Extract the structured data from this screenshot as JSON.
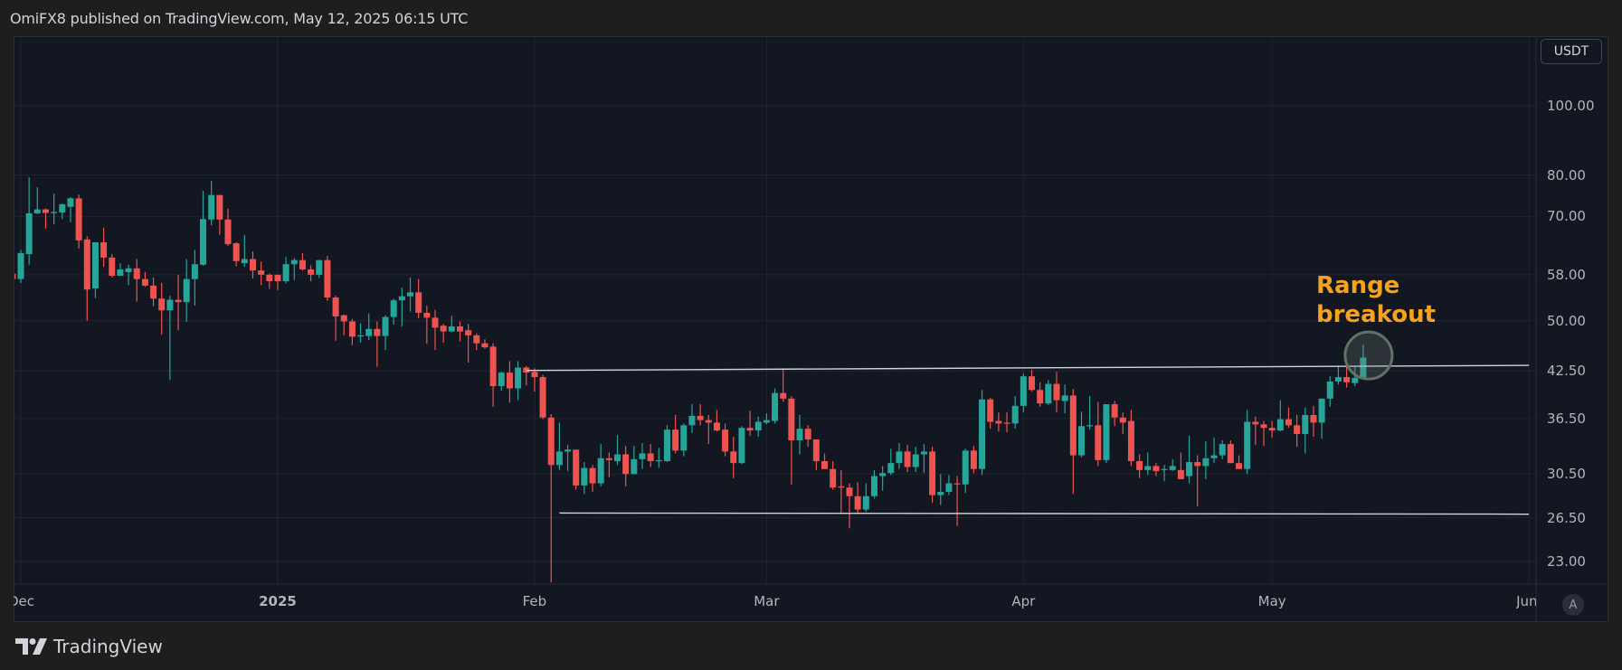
{
  "header": {
    "text": "OmiFX8 published on TradingView.com, May 12, 2025 06:15 UTC"
  },
  "footer": {
    "brand": "TradingView",
    "logo_icon": "tradingview-logo-icon"
  },
  "price_axis": {
    "currency_button": "USDT",
    "auto_scale_button": "A"
  },
  "annotation": {
    "line1": "Range",
    "line2": "breakout",
    "color": "#f7a21b"
  },
  "chart_data": {
    "type": "candlestick",
    "title": "",
    "y_scale": "log",
    "ylim": [
      21,
      118
    ],
    "grid": true,
    "last_candle_date": "2025-05-12",
    "colors": {
      "up": "#26a69a",
      "down": "#ef5350",
      "background": "#131722",
      "grid": "#2a2e39"
    },
    "y_ticks": [
      "100.00",
      "80.00",
      "70.00",
      "58.00",
      "50.00",
      "42.50",
      "36.50",
      "30.50",
      "26.50",
      "23.00"
    ],
    "x_ticks": [
      {
        "label": "Dec",
        "date": "2024-12-01",
        "type": "month"
      },
      {
        "label": "2025",
        "date": "2025-01-01",
        "type": "year"
      },
      {
        "label": "Feb",
        "date": "2025-02-01",
        "type": "month"
      },
      {
        "label": "Mar",
        "date": "2025-03-01",
        "type": "month"
      },
      {
        "label": "Apr",
        "date": "2025-04-01",
        "type": "month"
      },
      {
        "label": "May",
        "date": "2025-05-01",
        "type": "month"
      },
      {
        "label": "Jun",
        "date": "2025-06-01",
        "type": "month"
      }
    ],
    "candles_ohlc": [
      [
        55.5,
        58.5,
        55.3,
        58.2
      ],
      [
        58.2,
        62.2,
        56.5,
        57.2
      ],
      [
        57.2,
        62.8,
        56.5,
        62.2
      ],
      [
        62,
        79.4,
        59.9,
        70.7
      ],
      [
        70.7,
        76.9,
        70.5,
        71.6
      ],
      [
        71.6,
        71.8,
        67.3,
        70.8
      ],
      [
        70.8,
        75.3,
        68.2,
        71.0
      ],
      [
        70.9,
        73.0,
        69.4,
        72.8
      ],
      [
        72.2,
        74.5,
        68.7,
        74.2
      ],
      [
        74.2,
        75.1,
        63.1,
        64.8
      ],
      [
        65,
        65.7,
        50,
        55.3
      ],
      [
        55.5,
        64.4,
        53.8,
        64.4
      ],
      [
        64.4,
        67.5,
        59.5,
        61.3
      ],
      [
        61.3,
        62,
        57.5,
        57.8
      ],
      [
        57.8,
        60.2,
        57.8,
        59.0
      ],
      [
        58.5,
        59.9,
        56.1,
        59.2
      ],
      [
        59.2,
        61,
        53.2,
        57.2
      ],
      [
        57.2,
        58.5,
        55.8,
        56.0
      ],
      [
        56,
        57.5,
        52.4,
        53.7
      ],
      [
        53.7,
        56.5,
        47.8,
        51.7
      ],
      [
        51.7,
        54.2,
        41.3,
        53.5
      ],
      [
        53.5,
        58,
        48.5,
        53.1
      ],
      [
        53.1,
        61,
        49.8,
        57.2
      ],
      [
        57.2,
        62.8,
        52.5,
        60
      ],
      [
        59.9,
        76,
        59.7,
        69.4
      ],
      [
        69.3,
        78.5,
        68,
        75.0
      ],
      [
        75,
        75,
        66,
        69.3
      ],
      [
        69.3,
        71.8,
        63.6,
        64.0
      ],
      [
        64.2,
        64.4,
        59.6,
        60.6
      ],
      [
        60.2,
        65.9,
        59.5,
        61
      ],
      [
        61,
        62.5,
        57.3,
        58.8
      ],
      [
        58.8,
        60.5,
        56.1,
        58
      ],
      [
        58,
        58.2,
        55.4,
        56.8
      ],
      [
        58.0,
        58.0,
        55.2,
        56.8
      ],
      [
        56.8,
        61.4,
        56.4,
        60
      ],
      [
        60,
        61.2,
        57,
        60.8
      ],
      [
        60.8,
        62.2,
        58.8,
        59
      ],
      [
        59,
        59.8,
        56.8,
        58
      ],
      [
        58,
        60.8,
        57.4,
        60.8
      ],
      [
        60.8,
        61.6,
        53.3,
        53.9
      ],
      [
        53.9,
        54.2,
        46.9,
        50.7
      ],
      [
        50.9,
        51,
        47.7,
        49.9
      ],
      [
        49.9,
        50.3,
        46.2,
        47.5
      ],
      [
        47.6,
        49.6,
        46.6,
        47.7
      ],
      [
        47.6,
        51.2,
        47,
        48.7
      ],
      [
        48.7,
        49.9,
        43.1,
        47.6
      ],
      [
        47.6,
        50.9,
        45.5,
        50.6
      ],
      [
        50.6,
        53.7,
        49.4,
        53.4
      ],
      [
        53.4,
        55.6,
        49.1,
        54.1
      ],
      [
        54.1,
        57.5,
        51.5,
        54.8
      ],
      [
        54.8,
        57.2,
        50.4,
        51.3
      ],
      [
        51.3,
        52.5,
        46.4,
        50.5
      ],
      [
        50.5,
        51.8,
        45.5,
        48.9
      ],
      [
        49.2,
        49.5,
        46.6,
        48.3
      ],
      [
        48.3,
        50.8,
        48.2,
        49.1
      ],
      [
        49.1,
        49.9,
        46.8,
        48.3
      ],
      [
        48.5,
        49.5,
        43.7,
        47.7
      ],
      [
        47.7,
        48,
        45.5,
        46.5
      ],
      [
        46.5,
        47.1,
        45.7,
        45.9
      ],
      [
        46,
        46.5,
        37.9,
        40.5
      ],
      [
        40.5,
        42.4,
        39.9,
        42.3
      ],
      [
        42.3,
        43.9,
        38.4,
        40.2
      ],
      [
        40.2,
        43.9,
        38.7,
        43.0
      ],
      [
        43,
        43.2,
        40.6,
        42.3
      ],
      [
        42.4,
        42.9,
        39.8,
        41.7
      ],
      [
        41.7,
        42,
        36.4,
        36.6
      ],
      [
        36.6,
        37,
        21.5,
        31.4
      ],
      [
        31.4,
        36,
        30.9,
        32.8
      ],
      [
        32.8,
        33.5,
        30.8,
        33.0
      ],
      [
        33,
        33,
        29,
        29.4
      ],
      [
        29.4,
        31.7,
        28.6,
        31.1
      ],
      [
        31.1,
        31.4,
        28.8,
        29.6
      ],
      [
        29.6,
        33.6,
        29.3,
        32.1
      ],
      [
        32.1,
        32.7,
        30.2,
        31.9
      ],
      [
        31.8,
        34.6,
        31.4,
        32.5
      ],
      [
        32.5,
        33.4,
        29.3,
        30.5
      ],
      [
        30.5,
        33.4,
        30.5,
        32.0
      ],
      [
        32,
        33.7,
        31,
        32.6
      ],
      [
        32.6,
        33.6,
        31.2,
        31.8
      ],
      [
        31.8,
        33.2,
        31.1,
        31.9
      ],
      [
        31.8,
        35.7,
        31.7,
        35.2
      ],
      [
        35.2,
        36.9,
        32.6,
        32.9
      ],
      [
        32.9,
        35.9,
        32.3,
        35.7
      ],
      [
        35.7,
        38.2,
        34.8,
        36.8
      ],
      [
        36.8,
        38.2,
        35.7,
        36.3
      ],
      [
        36.3,
        36.9,
        33.6,
        36
      ],
      [
        36,
        37.5,
        35,
        35.1
      ],
      [
        35.2,
        35.9,
        32.3,
        32.8
      ],
      [
        32.8,
        34.4,
        30.1,
        31.6
      ],
      [
        31.6,
        35.6,
        31.5,
        35.4
      ],
      [
        35.4,
        37.4,
        34.5,
        35.1
      ],
      [
        35.1,
        36.7,
        34.4,
        36.1
      ],
      [
        36,
        37.1,
        35.8,
        36.3
      ],
      [
        36.2,
        40.2,
        35.9,
        39.6
      ],
      [
        39.6,
        42.8,
        38.5,
        38.9
      ],
      [
        38.9,
        39.2,
        29.5,
        34
      ],
      [
        34,
        36.9,
        32.5,
        35.3
      ],
      [
        35.3,
        35.7,
        33.3,
        34.1
      ],
      [
        34.1,
        34.1,
        30.9,
        31.8
      ],
      [
        31.8,
        32.6,
        31,
        31
      ],
      [
        31,
        31.8,
        29,
        29.2
      ],
      [
        29.3,
        30.9,
        26.8,
        29.2
      ],
      [
        29.2,
        29.6,
        25.6,
        28.4
      ],
      [
        28.4,
        29.7,
        26.8,
        27.2
      ],
      [
        27.2,
        29.6,
        27,
        28.4
      ],
      [
        28.4,
        30.9,
        28.2,
        30.3
      ],
      [
        30.3,
        31.3,
        28.9,
        30.6
      ],
      [
        30.6,
        33.1,
        30.4,
        31.6
      ],
      [
        31.6,
        33.7,
        31,
        32.8
      ],
      [
        32.8,
        33.5,
        30.7,
        31.2
      ],
      [
        31.2,
        33.3,
        30.7,
        32.5
      ],
      [
        32.5,
        33.6,
        30.6,
        32.8
      ],
      [
        32.8,
        33.3,
        27.8,
        28.5
      ],
      [
        28.5,
        30.5,
        27.6,
        28.8
      ],
      [
        28.8,
        30.4,
        28.5,
        29.6
      ],
      [
        29.6,
        30.3,
        25.8,
        29.5
      ],
      [
        29.5,
        33.1,
        28.7,
        32.9
      ],
      [
        32.9,
        33.4,
        30.6,
        31.0
      ],
      [
        31,
        40,
        30.4,
        38.8
      ],
      [
        38.8,
        39,
        35.3,
        36.1
      ],
      [
        36.2,
        37.2,
        35,
        35.9
      ],
      [
        36,
        37.2,
        34.9,
        35.9
      ],
      [
        35.9,
        39.2,
        35.3,
        38.0
      ],
      [
        38,
        42.2,
        37.2,
        41.8
      ],
      [
        41.8,
        42.7,
        39.8,
        40
      ],
      [
        40,
        41,
        37.9,
        38.3
      ],
      [
        38.3,
        41.3,
        38.1,
        40.8
      ],
      [
        40.8,
        42.4,
        37.2,
        38.7
      ],
      [
        38.6,
        40.7,
        37.1,
        39.3
      ],
      [
        39.3,
        40.1,
        28.6,
        32.4
      ],
      [
        32.4,
        37.3,
        32.2,
        35.6
      ],
      [
        35.6,
        39.2,
        35.2,
        35.7
      ],
      [
        35.7,
        38.5,
        31.3,
        31.9
      ],
      [
        31.9,
        38.2,
        31.6,
        38.2
      ],
      [
        38.2,
        38.6,
        35.6,
        36.6
      ],
      [
        36.6,
        37.2,
        34.7,
        36
      ],
      [
        36.2,
        37.5,
        31.3,
        31.8
      ],
      [
        31.8,
        32.5,
        30.1,
        30.9
      ],
      [
        30.9,
        32.7,
        30.4,
        31.3
      ],
      [
        31.3,
        31.6,
        30.3,
        30.8
      ],
      [
        30.9,
        31.4,
        29.8,
        31.0
      ],
      [
        30.9,
        32,
        30.8,
        31.3
      ],
      [
        30.9,
        32.7,
        30.4,
        30.0
      ],
      [
        30.3,
        34.5,
        29.6,
        31.7
      ],
      [
        31.7,
        32.4,
        27.5,
        31.3
      ],
      [
        31.3,
        33.9,
        30,
        32.1
      ],
      [
        32.1,
        34.3,
        31.6,
        32.4
      ],
      [
        32.4,
        34,
        32,
        33.6
      ],
      [
        33.6,
        34,
        31.6,
        31.6
      ],
      [
        31.6,
        32.4,
        31,
        31
      ],
      [
        31,
        37.5,
        30.5,
        36.1
      ],
      [
        36.1,
        36.7,
        33.5,
        35.8
      ],
      [
        35.8,
        36.2,
        33.4,
        35.4
      ],
      [
        35.4,
        36.2,
        34.3,
        35.1
      ],
      [
        35.1,
        38.7,
        35,
        36.4
      ],
      [
        36.4,
        37.8,
        35.4,
        35.7
      ],
      [
        35.7,
        36.9,
        33.3,
        34.7
      ],
      [
        34.7,
        37.8,
        32.6,
        36.9
      ],
      [
        36.9,
        38,
        34.4,
        36
      ],
      [
        36,
        38.9,
        34.2,
        38.9
      ],
      [
        38.9,
        41.8,
        37.9,
        41.1
      ],
      [
        41.1,
        43.3,
        40.7,
        41.7
      ],
      [
        41.7,
        43.3,
        40.3,
        41.0
      ],
      [
        40.9,
        43.3,
        40.5,
        41.6
      ],
      [
        41.6,
        46.3,
        41.5,
        44.4
      ]
    ],
    "trendlines": [
      {
        "name": "range-resistance",
        "start": {
          "date": "2025-01-31",
          "price": 42.6
        },
        "end": {
          "date": "2025-06-01",
          "price": 43.3
        },
        "color": "#d1d4dc"
      },
      {
        "name": "range-support",
        "start": {
          "date": "2025-02-04",
          "price": 26.9
        },
        "end": {
          "date": "2025-06-01",
          "price": 26.8
        },
        "color": "#d1d4dc"
      }
    ],
    "highlight_circle": {
      "date": "2025-05-12",
      "price": 44.7
    }
  }
}
